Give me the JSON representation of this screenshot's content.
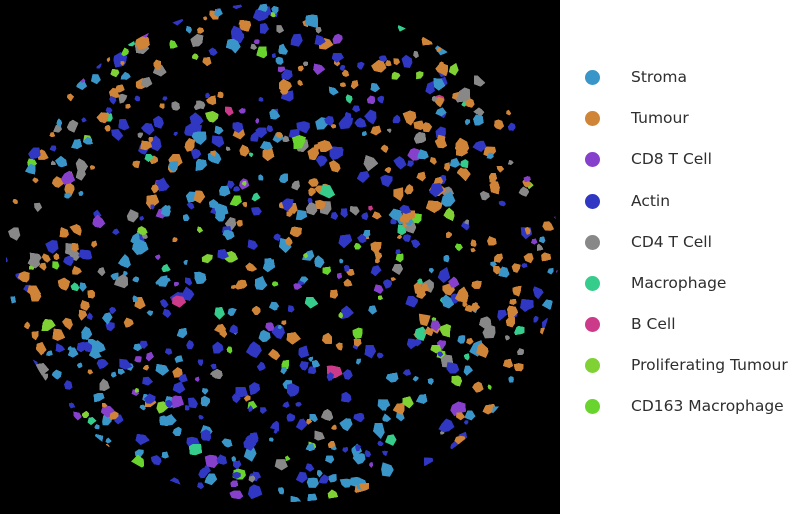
{
  "figure": {
    "description_kind": "cell-type segmentation map of a circular tissue core"
  },
  "legend": {
    "items": [
      {
        "label": "Stroma",
        "color": "#3a96c8"
      },
      {
        "label": "Tumour",
        "color": "#cf8438"
      },
      {
        "label": "CD8 T Cell",
        "color": "#8740cc"
      },
      {
        "label": "Actin",
        "color": "#3037c2"
      },
      {
        "label": "CD4 T Cell",
        "color": "#888888"
      },
      {
        "label": "Macrophage",
        "color": "#35cc8c"
      },
      {
        "label": "B Cell",
        "color": "#cc3a8a"
      },
      {
        "label": "Proliferating Tumour",
        "color": "#7fd134"
      },
      {
        "label": "CD163 Macrophage",
        "color": "#6ad42e"
      }
    ]
  }
}
